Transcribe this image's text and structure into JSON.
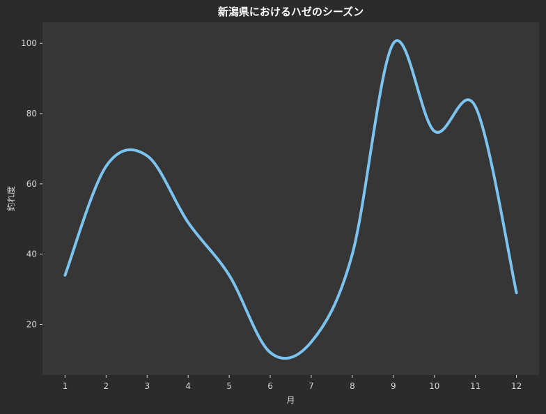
{
  "chart_data": {
    "type": "line",
    "title": "新潟県におけるハゼのシーズン",
    "xlabel": "月",
    "ylabel": "釣れ度",
    "x": [
      1,
      2,
      3,
      4,
      5,
      6,
      7,
      8,
      9,
      10,
      11,
      12
    ],
    "x_ticks": [
      "1",
      "2",
      "3",
      "4",
      "5",
      "6",
      "7",
      "8",
      "9",
      "10",
      "11",
      "12"
    ],
    "y_ticks": [
      "20",
      "40",
      "60",
      "80",
      "100"
    ],
    "series": [
      {
        "name": "",
        "values": [
          34,
          65,
          68,
          49,
          34,
          12,
          15,
          40,
          100,
          75,
          82,
          29
        ]
      }
    ],
    "xlim": [
      0.45,
      12.55
    ],
    "ylim": [
      5.6,
      106
    ],
    "grid": false,
    "colors": {
      "line": "#7cc3f0",
      "plot_background": "#363636",
      "figure_background": "#2b2b2b",
      "text": "#d6d6d6",
      "title": "#ffffff"
    }
  }
}
